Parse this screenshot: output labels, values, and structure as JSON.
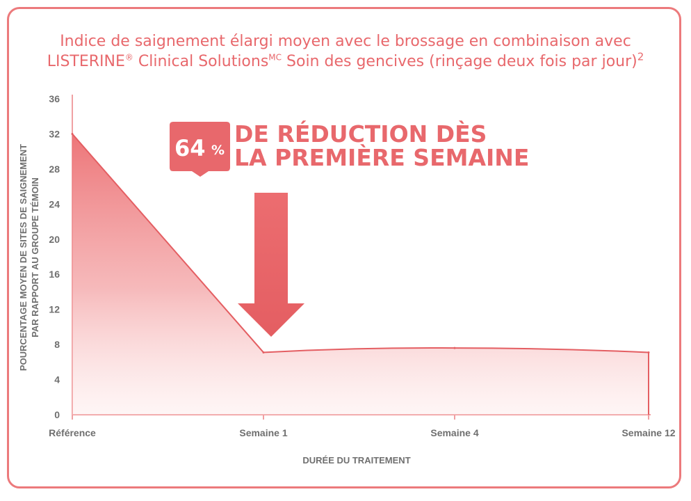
{
  "title_line1": "Indice de saignement élargi moyen avec le brossage en combinaison avec",
  "title_line2_pre": "LISTERINE",
  "title_reg": "®",
  "title_line2_mid": " Clinical Solutions",
  "title_mc": "MC",
  "title_line2_post": " Soin des gencives (rinçage deux fois par jour)",
  "title_ref": "2",
  "colors": {
    "accent": "#e8686c",
    "frame": "#ec7a7c",
    "axis": "#f0a0a2",
    "text": "#6f6f6f"
  },
  "callout": {
    "badge_value": "64",
    "badge_unit": "%",
    "line1": "DE RÉDUCTION DÈS",
    "line2": "LA PREMIÈRE SEMAINE"
  },
  "chart_data": {
    "type": "area",
    "categories": [
      "Référence",
      "Semaine 1",
      "Semaine 4",
      "Semaine 12"
    ],
    "values": [
      32,
      7.1,
      7.6,
      7.1
    ],
    "xlabel": "DURÉE DU TRAITEMENT",
    "ylabel_line1": "POURCENTAGE MOYEN DE SITES DE SAIGNEMENT",
    "ylabel_line2": "PAR RAPPORT AU GROUPE TÉMOIN",
    "ylim": [
      0,
      36
    ],
    "yticks": [
      "0",
      "4",
      "8",
      "12",
      "16",
      "20",
      "24",
      "28",
      "32",
      "36"
    ],
    "grid": false
  }
}
